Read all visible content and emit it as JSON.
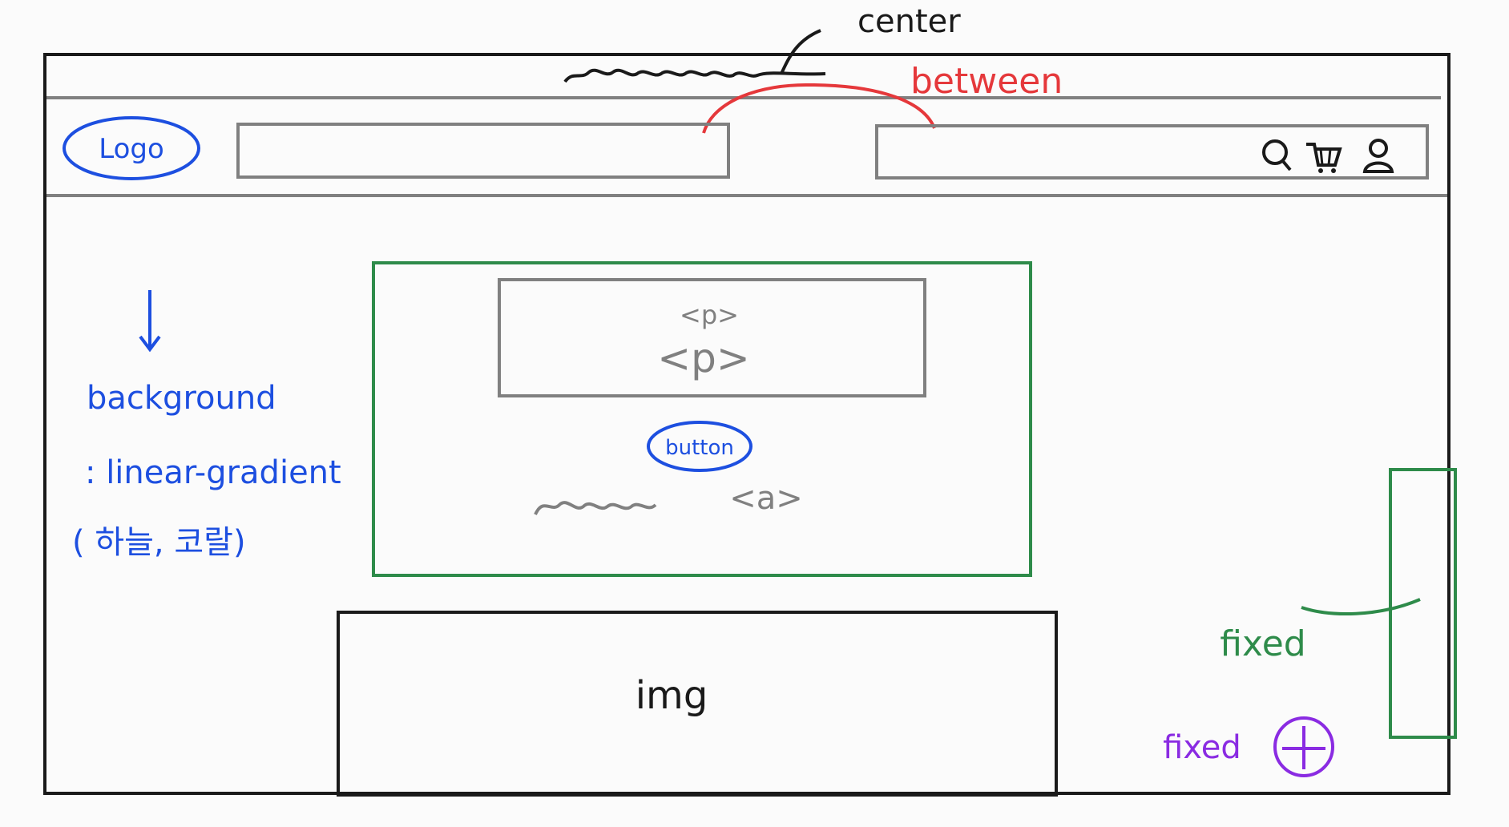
{
  "annotations": {
    "center": "center",
    "between": "between",
    "background_line1": "background",
    "background_line2": ": linear-gradient",
    "background_line3": "( 하늘, 코랄)",
    "fixed_sidebar": "fixed",
    "fixed_button": "fixed"
  },
  "header": {
    "logo_label": "Logo"
  },
  "hero": {
    "p1": "<p>",
    "p2": "<p>",
    "button_label": "button",
    "link_label": "<a>"
  },
  "image_box": {
    "label": "img"
  },
  "icons": {
    "search": "search-icon",
    "cart": "cart-icon",
    "user": "user-icon",
    "add": "plus-icon"
  },
  "colors": {
    "ink": "#1a1a1a",
    "gray": "#808080",
    "blue": "#1d4fe0",
    "red": "#e5383b",
    "green": "#2e8b4a",
    "purple": "#8a2be2",
    "paper": "#fbfbfb"
  }
}
